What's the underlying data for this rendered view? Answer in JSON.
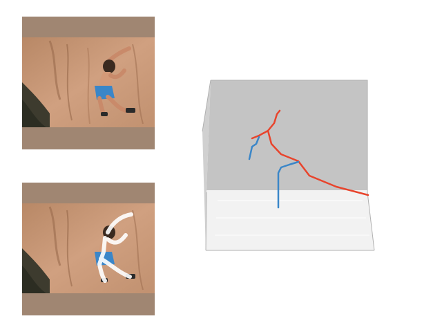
{
  "figure": {
    "panels": [
      {
        "id": "input-frame",
        "content": "rock-climber-photo",
        "overlay": false
      },
      {
        "id": "pose-overlay-frame",
        "content": "rock-climber-photo",
        "overlay": "skeleton"
      }
    ],
    "plot3d": {
      "background_color": "#c4c4c4",
      "floor_color": "#f2f2f2",
      "limb_colors": {
        "left": "#e8442c",
        "right": "#3a86c8"
      }
    }
  }
}
